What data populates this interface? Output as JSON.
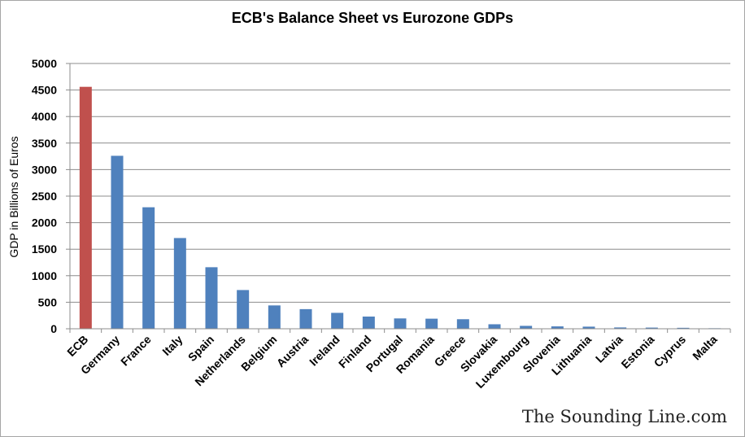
{
  "chart_data": {
    "type": "bar",
    "title": "ECB's Balance Sheet vs Eurozone GDPs",
    "xlabel": "",
    "ylabel": "GDP in Billions of Euros",
    "ylim": [
      0,
      5000
    ],
    "yticks": [
      0,
      500,
      1000,
      1500,
      2000,
      2500,
      3000,
      3500,
      4000,
      4500,
      5000
    ],
    "grid": true,
    "legend": "none",
    "categories": [
      "ECB",
      "Germany",
      "France",
      "Italy",
      "Spain",
      "Netherlands",
      "Belgium",
      "Austria",
      "Ireland",
      "Finland",
      "Portugal",
      "Romania",
      "Greece",
      "Slovakia",
      "Luxembourg",
      "Slovenia",
      "Lithuania",
      "Latvia",
      "Estonia",
      "Cyprus",
      "Malta"
    ],
    "values": [
      4560,
      3260,
      2290,
      1710,
      1160,
      730,
      440,
      370,
      300,
      230,
      195,
      190,
      180,
      85,
      55,
      45,
      40,
      25,
      22,
      18,
      10
    ],
    "colors": {
      "highlight": "#c0504d",
      "default": "#4f81bd",
      "grid": "#8c8c8c",
      "axis": "#8c8c8c"
    },
    "highlight_index": 0
  },
  "watermark": "The Sounding Line.com"
}
